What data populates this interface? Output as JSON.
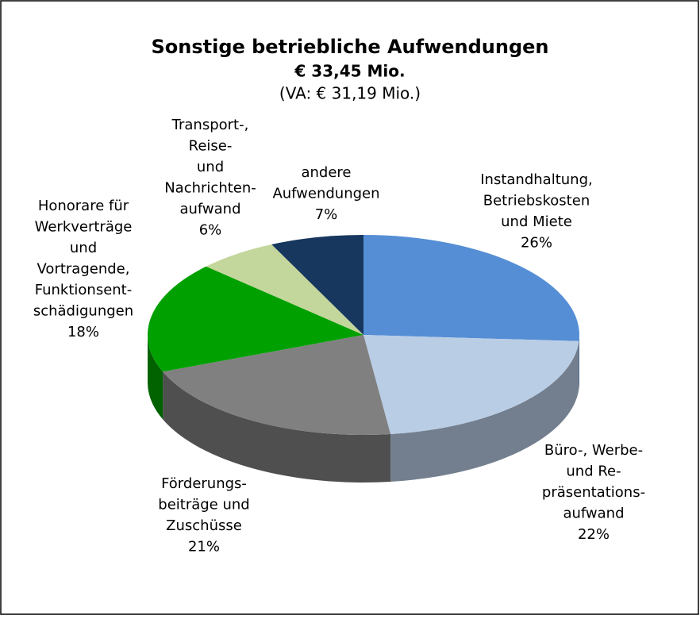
{
  "chart_data": {
    "type": "pie3d",
    "title": "Sonstige betriebliche Aufwendungen",
    "subtitle": [
      "€ 33,45 Mio.",
      "(VA: € 31,19 Mio.)"
    ],
    "categories": [
      [
        "Instandhaltung,",
        "Betriebskosten",
        "und Miete"
      ],
      [
        "Büro-, Werbe-",
        "und Re-",
        "präsentations-",
        "aufwand"
      ],
      [
        "Förderungs-",
        "beiträge und",
        "Zuschüsse"
      ],
      [
        "Honorare für",
        "Werkverträge",
        "und",
        "Vortragende,",
        "Funktionsent-",
        "schädigungen"
      ],
      [
        "Transport-,",
        "Reise-",
        "und",
        "Nachrichten-",
        "aufwand"
      ],
      [
        "andere",
        "Aufwendungen"
      ]
    ],
    "values": [
      26,
      22,
      21,
      18,
      6,
      7
    ],
    "value_labels": [
      "26%",
      "22%",
      "21%",
      "18%",
      "6%",
      "7%"
    ],
    "colors": [
      "#558ed5",
      "#b9cde5",
      "#808080",
      "#00a000",
      "#c3d69b",
      "#17375e"
    ]
  }
}
